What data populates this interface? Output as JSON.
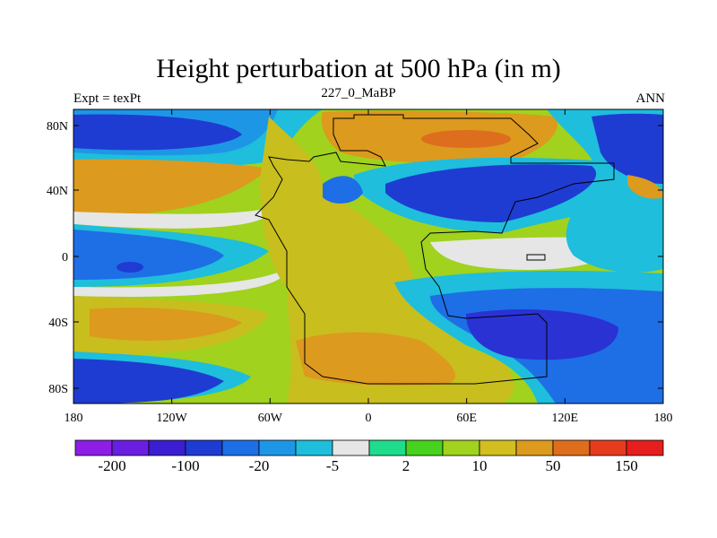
{
  "title": "Height perturbation at 500 hPa (in m)",
  "subtitle_left": "Expt = texPt",
  "subtitle_center": "227_0_MaBP",
  "subtitle_right": "ANN",
  "axes": {
    "x_ticks": [
      "180",
      "120W",
      "60W",
      "0",
      "60E",
      "120E",
      "180"
    ],
    "y_ticks": [
      "80N",
      "40N",
      "0",
      "40S",
      "80S"
    ]
  },
  "colorbar": {
    "colors": [
      "#8c1ee6",
      "#6a1ee0",
      "#3c1ed2",
      "#1e3cd2",
      "#1e6ee6",
      "#1e96e6",
      "#1ebedc",
      "#e6e6e6",
      "#1edc8c",
      "#46d21e",
      "#a0d21e",
      "#d2be1e",
      "#dc9a1e",
      "#dc6e1e",
      "#e63c1e",
      "#e61e1e"
    ],
    "labels": [
      "-200",
      "-100",
      "-20",
      "-5",
      "2",
      "10",
      "50",
      "150"
    ]
  },
  "palette": {
    "deep_blue": "#2a32d4",
    "blue": "#1e6ee6",
    "light_blue": "#1eaae6",
    "cyan": "#1ebedc",
    "white": "#e6e6e6",
    "green": "#46d21e",
    "yellow_green": "#a0d21e",
    "olive": "#c8be1e",
    "orange": "#dc9a1e",
    "dark_orange": "#dc6e1e"
  }
}
